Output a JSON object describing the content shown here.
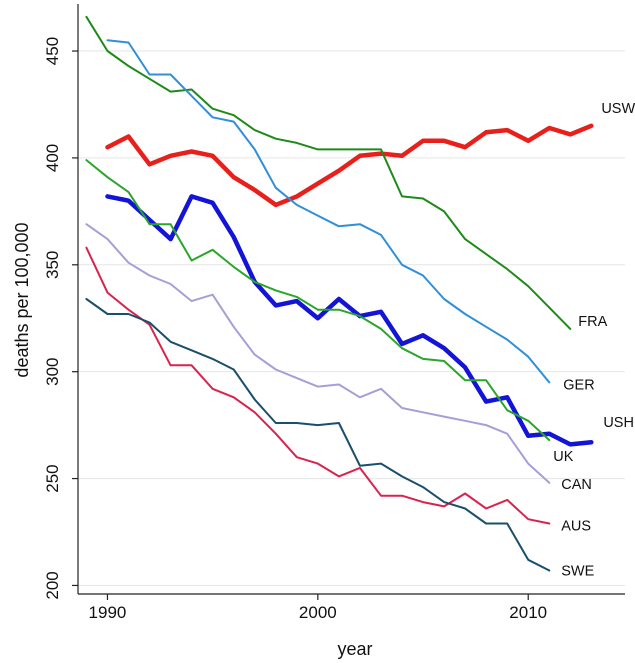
{
  "chart_data": {
    "type": "line",
    "title": "",
    "xlabel": "year",
    "ylabel": "deaths per 100,000",
    "xlim": [
      1988.6,
      2014.6
    ],
    "ylim": [
      196,
      472
    ],
    "x_ticks": [
      1990,
      2000,
      2010
    ],
    "y_ticks": [
      200,
      250,
      300,
      350,
      400,
      450
    ],
    "grid": "horizontal",
    "series": [
      {
        "name": "USW",
        "color": "#e8201b",
        "width": 4.5,
        "points": [
          [
            1990,
            405
          ],
          [
            1991,
            410
          ],
          [
            1992,
            397
          ],
          [
            1993,
            401
          ],
          [
            1994,
            403
          ],
          [
            1995,
            401
          ],
          [
            1996,
            391
          ],
          [
            1997,
            385
          ],
          [
            1998,
            378
          ],
          [
            1999,
            382
          ],
          [
            2000,
            388
          ],
          [
            2001,
            394
          ],
          [
            2002,
            401
          ],
          [
            2003,
            402
          ],
          [
            2004,
            401
          ],
          [
            2005,
            408
          ],
          [
            2006,
            408
          ],
          [
            2007,
            405
          ],
          [
            2008,
            412
          ],
          [
            2009,
            413
          ],
          [
            2010,
            408
          ],
          [
            2011,
            414
          ],
          [
            2012,
            411
          ],
          [
            2013,
            415
          ]
        ]
      },
      {
        "name": "FRA",
        "color": "#1f8a1a",
        "width": 2,
        "points": [
          [
            1989,
            466
          ],
          [
            1990,
            450
          ],
          [
            1991,
            443
          ],
          [
            1992,
            437
          ],
          [
            1993,
            431
          ],
          [
            1994,
            432
          ],
          [
            1995,
            423
          ],
          [
            1996,
            420
          ],
          [
            1997,
            413
          ],
          [
            1998,
            409
          ],
          [
            1999,
            407
          ],
          [
            2000,
            404
          ],
          [
            2001,
            404
          ],
          [
            2002,
            404
          ],
          [
            2003,
            404
          ],
          [
            2004,
            382
          ],
          [
            2005,
            381
          ],
          [
            2006,
            375
          ],
          [
            2007,
            362
          ],
          [
            2008,
            355
          ],
          [
            2009,
            348
          ],
          [
            2010,
            340
          ],
          [
            2011,
            330
          ],
          [
            2012,
            320
          ]
        ]
      },
      {
        "name": "GER",
        "color": "#2f8fd8",
        "width": 2,
        "points": [
          [
            1990,
            455
          ],
          [
            1991,
            454
          ],
          [
            1992,
            439
          ],
          [
            1993,
            439
          ],
          [
            1994,
            429
          ],
          [
            1995,
            419
          ],
          [
            1996,
            417
          ],
          [
            1997,
            404
          ],
          [
            1998,
            386
          ],
          [
            1999,
            378
          ],
          [
            2000,
            373
          ],
          [
            2001,
            368
          ],
          [
            2002,
            369
          ],
          [
            2003,
            364
          ],
          [
            2004,
            350
          ],
          [
            2005,
            345
          ],
          [
            2006,
            334
          ],
          [
            2007,
            327
          ],
          [
            2008,
            321
          ],
          [
            2009,
            315
          ],
          [
            2010,
            307
          ],
          [
            2011,
            295
          ]
        ]
      },
      {
        "name": "USH",
        "color": "#1414d6",
        "width": 4.5,
        "points": [
          [
            1990,
            382
          ],
          [
            1991,
            380
          ],
          [
            1992,
            371
          ],
          [
            1993,
            362
          ],
          [
            1994,
            382
          ],
          [
            1995,
            379
          ],
          [
            1996,
            363
          ],
          [
            1997,
            342
          ],
          [
            1998,
            331
          ],
          [
            1999,
            333
          ],
          [
            2000,
            325
          ],
          [
            2001,
            334
          ],
          [
            2002,
            326
          ],
          [
            2003,
            328
          ],
          [
            2004,
            313
          ],
          [
            2005,
            317
          ],
          [
            2006,
            311
          ],
          [
            2007,
            302
          ],
          [
            2008,
            286
          ],
          [
            2009,
            288
          ],
          [
            2010,
            270
          ],
          [
            2011,
            271
          ],
          [
            2012,
            266
          ],
          [
            2013,
            267
          ]
        ]
      },
      {
        "name": "UK",
        "color": "#2aa62a",
        "width": 2,
        "points": [
          [
            1989,
            399
          ],
          [
            1990,
            391
          ],
          [
            1991,
            384
          ],
          [
            1992,
            369
          ],
          [
            1993,
            369
          ],
          [
            1994,
            352
          ],
          [
            1995,
            357
          ],
          [
            1996,
            349
          ],
          [
            1997,
            342
          ],
          [
            1998,
            338
          ],
          [
            1999,
            335
          ],
          [
            2000,
            329
          ],
          [
            2001,
            329
          ],
          [
            2002,
            326
          ],
          [
            2003,
            320
          ],
          [
            2004,
            311
          ],
          [
            2005,
            306
          ],
          [
            2006,
            305
          ],
          [
            2007,
            296
          ],
          [
            2008,
            296
          ],
          [
            2009,
            282
          ],
          [
            2010,
            277
          ],
          [
            2011,
            268
          ]
        ]
      },
      {
        "name": "CAN",
        "color": "#a79ed6",
        "width": 2,
        "points": [
          [
            1989,
            369
          ],
          [
            1990,
            362
          ],
          [
            1991,
            351
          ],
          [
            1992,
            345
          ],
          [
            1993,
            341
          ],
          [
            1994,
            333
          ],
          [
            1995,
            336
          ],
          [
            1996,
            321
          ],
          [
            1997,
            308
          ],
          [
            1998,
            301
          ],
          [
            1999,
            297
          ],
          [
            2000,
            293
          ],
          [
            2001,
            294
          ],
          [
            2002,
            288
          ],
          [
            2003,
            292
          ],
          [
            2004,
            283
          ],
          [
            2005,
            281
          ],
          [
            2006,
            279
          ],
          [
            2007,
            277
          ],
          [
            2008,
            275
          ],
          [
            2009,
            271
          ],
          [
            2010,
            257
          ],
          [
            2011,
            248
          ]
        ]
      },
      {
        "name": "AUS",
        "color": "#d8234e",
        "width": 2,
        "points": [
          [
            1989,
            358
          ],
          [
            1990,
            337
          ],
          [
            1991,
            329
          ],
          [
            1992,
            322
          ],
          [
            1993,
            303
          ],
          [
            1994,
            303
          ],
          [
            1995,
            292
          ],
          [
            1996,
            288
          ],
          [
            1997,
            281
          ],
          [
            1998,
            271
          ],
          [
            1999,
            260
          ],
          [
            2000,
            257
          ],
          [
            2001,
            251
          ],
          [
            2002,
            255
          ],
          [
            2003,
            242
          ],
          [
            2004,
            242
          ],
          [
            2005,
            239
          ],
          [
            2006,
            237
          ],
          [
            2007,
            243
          ],
          [
            2008,
            236
          ],
          [
            2009,
            240
          ],
          [
            2010,
            231
          ],
          [
            2011,
            229
          ]
        ]
      },
      {
        "name": "SWE",
        "color": "#1a4f6b",
        "width": 2,
        "points": [
          [
            1989,
            334
          ],
          [
            1990,
            327
          ],
          [
            1991,
            327
          ],
          [
            1992,
            323
          ],
          [
            1993,
            314
          ],
          [
            1994,
            310
          ],
          [
            1995,
            306
          ],
          [
            1996,
            301
          ],
          [
            1997,
            287
          ],
          [
            1998,
            276
          ],
          [
            1999,
            276
          ],
          [
            2000,
            275
          ],
          [
            2001,
            276
          ],
          [
            2002,
            256
          ],
          [
            2003,
            257
          ],
          [
            2004,
            251
          ],
          [
            2005,
            246
          ],
          [
            2006,
            239
          ],
          [
            2007,
            236
          ],
          [
            2008,
            229
          ],
          [
            2009,
            229
          ],
          [
            2010,
            212
          ],
          [
            2011,
            207
          ]
        ]
      }
    ],
    "labels": [
      {
        "text": "USW",
        "series": "USW"
      },
      {
        "text": "FRA",
        "series": "FRA"
      },
      {
        "text": "GER",
        "series": "GER"
      },
      {
        "text": "USH",
        "series": "USH"
      },
      {
        "text": "UK",
        "series": "UK"
      },
      {
        "text": "CAN",
        "series": "CAN"
      },
      {
        "text": "AUS",
        "series": "AUS"
      },
      {
        "text": "SWE",
        "series": "SWE"
      }
    ]
  }
}
